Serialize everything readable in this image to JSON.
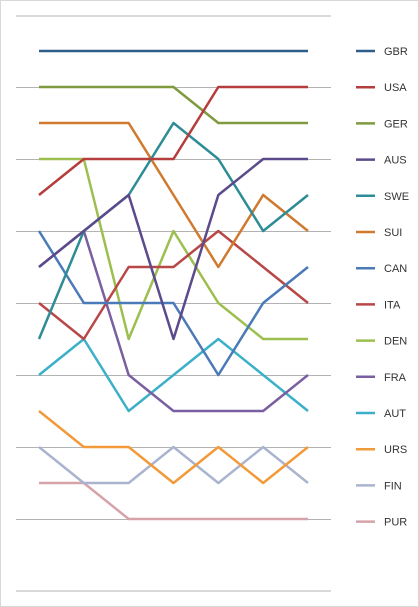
{
  "chart_data": {
    "type": "line",
    "subtype": "bump",
    "title": "",
    "xlabel": "",
    "ylabel": "",
    "x": [
      1,
      2,
      3,
      4,
      5,
      6,
      7
    ],
    "yaxis": "rank",
    "ylim": [
      1,
      14
    ],
    "grid": "horizontal",
    "legend": "right",
    "series": [
      {
        "name": "GBR",
        "color": "#2e5d8a",
        "values": [
          1,
          1,
          1,
          1,
          1,
          1,
          1
        ]
      },
      {
        "name": "USA",
        "color": "#b63d3d",
        "values": [
          5,
          4,
          4,
          4,
          2,
          2,
          2
        ]
      },
      {
        "name": "GER",
        "color": "#7f9a3f",
        "values": [
          2,
          2,
          2,
          2,
          3,
          3,
          3
        ]
      },
      {
        "name": "AUS",
        "color": "#5b4a8c",
        "values": [
          7,
          6,
          5,
          9,
          5,
          4,
          4
        ]
      },
      {
        "name": "SWE",
        "color": "#2e8c96",
        "values": [
          9,
          6,
          5,
          3,
          4,
          6,
          5
        ]
      },
      {
        "name": "SUI",
        "color": "#d07a30",
        "values": [
          3,
          3,
          3,
          5,
          7,
          5,
          6
        ]
      },
      {
        "name": "CAN",
        "color": "#4a7ab8",
        "values": [
          6,
          8,
          8,
          8,
          10,
          8,
          7
        ]
      },
      {
        "name": "ITA",
        "color": "#b84848",
        "values": [
          8,
          9,
          7,
          7,
          6,
          7,
          8
        ]
      },
      {
        "name": "DEN",
        "color": "#9cbf4f",
        "values": [
          4,
          4,
          9,
          6,
          8,
          9,
          9
        ]
      },
      {
        "name": "FRA",
        "color": "#7a5fa0",
        "values": [
          7,
          6,
          10,
          11,
          11,
          11,
          10
        ]
      },
      {
        "name": "AUT",
        "color": "#3bb0c8",
        "values": [
          10,
          9,
          11,
          10,
          9,
          10,
          11
        ]
      },
      {
        "name": "URS",
        "color": "#f29a3a",
        "values": [
          11,
          12,
          12,
          13,
          12,
          13,
          12
        ]
      },
      {
        "name": "FIN",
        "color": "#aab4cf",
        "values": [
          12,
          13,
          13,
          12,
          13,
          12,
          13
        ]
      },
      {
        "name": "PUR",
        "color": "#d6a3aa",
        "values": [
          13,
          13,
          14,
          14,
          14,
          14,
          14
        ]
      }
    ]
  }
}
